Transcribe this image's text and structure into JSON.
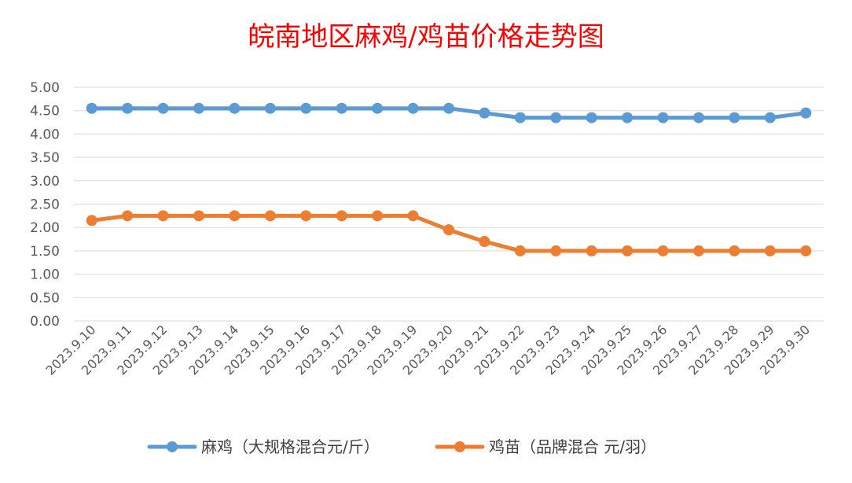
{
  "chart_data": {
    "type": "line",
    "title": "皖南地区麻鸡/鸡苗价格走势图",
    "categories": [
      "2023.9.10",
      "2023.9.11",
      "2023.9.12",
      "2023.9.13",
      "2023.9.14",
      "2023.9.15",
      "2023.9.16",
      "2023.9.17",
      "2023.9.18",
      "2023.9.19",
      "2023.9.20",
      "2023.9.21",
      "2023.9.22",
      "2023.9.23",
      "2023.9.24",
      "2023.9.25",
      "2023.9.26",
      "2023.9.27",
      "2023.9.28",
      "2023.9.29",
      "2023.9.30"
    ],
    "yticks": [
      "5.00",
      "4.50",
      "4.00",
      "3.50",
      "3.00",
      "2.50",
      "2.00",
      "1.50",
      "1.00",
      "0.50",
      "0.00"
    ],
    "ylim": [
      0,
      5
    ],
    "grid": true,
    "legend_position": "bottom",
    "series": [
      {
        "name": "麻鸡（大规格混合元/斤）",
        "color": "#5b9bd5",
        "values": [
          4.55,
          4.55,
          4.55,
          4.55,
          4.55,
          4.55,
          4.55,
          4.55,
          4.55,
          4.55,
          4.55,
          4.45,
          4.35,
          4.35,
          4.35,
          4.35,
          4.35,
          4.35,
          4.35,
          4.35,
          4.45
        ]
      },
      {
        "name": "鸡苗（品牌混合 元/羽）",
        "color": "#ed7d31",
        "values": [
          2.15,
          2.25,
          2.25,
          2.25,
          2.25,
          2.25,
          2.25,
          2.25,
          2.25,
          2.25,
          1.95,
          1.7,
          1.5,
          1.5,
          1.5,
          1.5,
          1.5,
          1.5,
          1.5,
          1.5,
          1.5
        ]
      }
    ]
  }
}
